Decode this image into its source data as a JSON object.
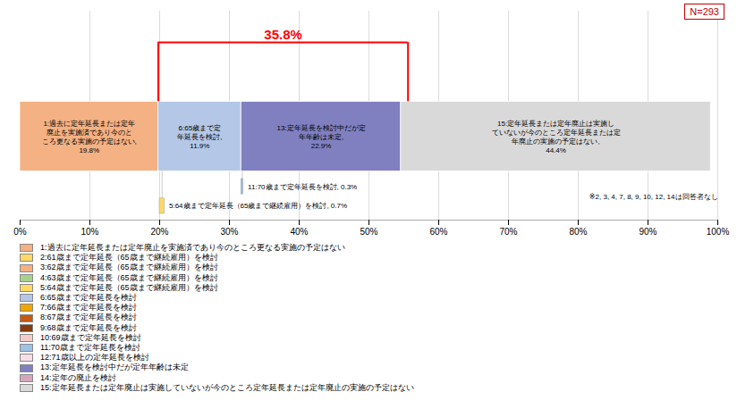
{
  "chart_data": {
    "type": "bar",
    "orientation": "horizontal",
    "stacked": true,
    "data_labels": true,
    "grid": true,
    "tick_labels": "x",
    "xlim": [
      0,
      100
    ],
    "xticks": [
      {
        "value": 0,
        "label": "0%"
      },
      {
        "value": 10,
        "label": "10%"
      },
      {
        "value": 20,
        "label": "20%"
      },
      {
        "value": 30,
        "label": "30%"
      },
      {
        "value": 40,
        "label": "40%"
      },
      {
        "value": 50,
        "label": "50%"
      },
      {
        "value": 60,
        "label": "60%"
      },
      {
        "value": 70,
        "label": "70%"
      },
      {
        "value": 80,
        "label": "80%"
      },
      {
        "value": 90,
        "label": "90%"
      },
      {
        "value": 100,
        "label": "100%"
      }
    ],
    "series": [
      {
        "color": "#f4b183",
        "values": [
          19.8
        ],
        "value_labels": [
          "1:過去に定年延長または定年\n廃止を実施済であり今のと\nころ更なる実施の予定はない,\n19.8%"
        ]
      },
      {
        "color": "#b4c7e7",
        "values": [
          11.9
        ],
        "value_labels": [
          "6:65歳まで定\n年延長を検討,\n11.9%"
        ]
      },
      {
        "color": "#8080c0",
        "values": [
          22.9
        ],
        "value_labels": [
          "13:定年延長を検討中だが定\n年年齢は未定,\n22.9%"
        ]
      },
      {
        "color": "#d9d9d9",
        "values": [
          44.4
        ],
        "value_labels": [
          "15:定年延長または定年廃止は実施し\nていないが今のところ定年延長または定\n年廃止の実施の予定はない,\n44.4%"
        ]
      }
    ],
    "small_bars": [
      {
        "label": "11:70歳まで定年延長を検討, 0.3%",
        "value": 0.3,
        "start": 31.7,
        "color": "#9dc3e6"
      },
      {
        "label": "5:64歳まで定年延長（65歳まで継続雇用）を検討, 0.7%",
        "value": 0.7,
        "start": 20.0,
        "color": "#ffd966"
      }
    ],
    "bracket": {
      "start": 19.8,
      "end": 55.6,
      "label": "35.8%"
    },
    "note": "※2, 3, 4, 7, 8, 9, 10, 12, 14は回答者なし",
    "N": "N=293",
    "legend_items": [
      {
        "label": "1:過去に定年延長または定年廃止を実施済であり今のところ更なる実施の予定はない",
        "color": "#f4b183"
      },
      {
        "label": "2:61歳まで定年延長（65歳まで継続雇用）を検討",
        "color": "#ffd966"
      },
      {
        "label": "3:62歳まで定年延長（65歳まで継続雇用）を検討",
        "color": "#f4b183"
      },
      {
        "label": "4:63歳まで定年延長（65歳まで継続雇用）を検討",
        "color": "#a9d18e"
      },
      {
        "label": "5:64歳まで定年延長（65歳まで継続雇用）を検討",
        "color": "#ffd966"
      },
      {
        "label": "6:65歳まで定年延長を検討",
        "color": "#b4c7e7"
      },
      {
        "label": "7:66歳まで定年延長を検討",
        "color": "#f0a500"
      },
      {
        "label": "8:67歳まで定年延長を検討",
        "color": "#c55a11"
      },
      {
        "label": "9:68歳まで定年延長を検討",
        "color": "#843c0c"
      },
      {
        "label": "10:69歳まで定年延長を検討",
        "color": "#f4cccc"
      },
      {
        "label": "11:70歳まで定年延長を検討",
        "color": "#9dc3e6"
      },
      {
        "label": "12:71歳以上の定年延長を検討",
        "color": "#f9dde8"
      },
      {
        "label": "13:定年延長を検討中だが定年年齢は未定",
        "color": "#8080c0"
      },
      {
        "label": "14:定年の廃止を検討",
        "color": "#d5a6bd"
      },
      {
        "label": "15:定年延長または定年廃止は実施していないが今のところ定年延長または定年廃止の実施の予定はない",
        "color": "#d9d9d9"
      }
    ]
  }
}
